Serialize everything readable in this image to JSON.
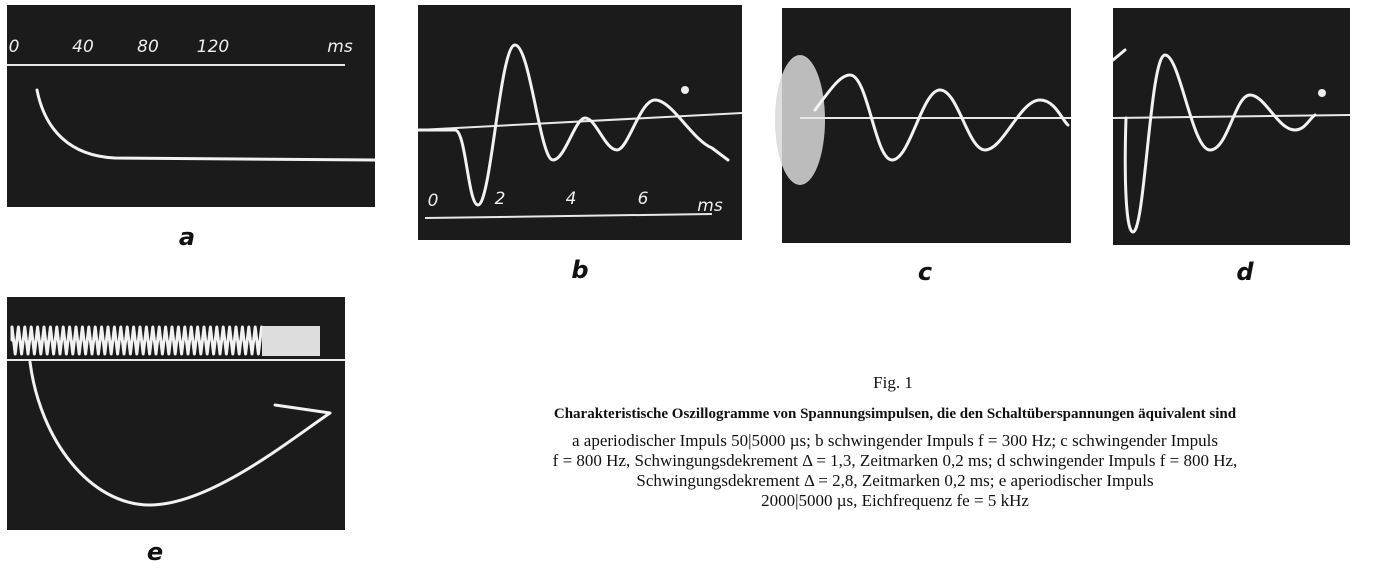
{
  "panels": [
    {
      "label": "a",
      "ticks": [
        "0",
        "40",
        "80",
        "120",
        "ms"
      ]
    },
    {
      "label": "b",
      "ticks": [
        "0",
        "2",
        "4",
        "6",
        "ms"
      ]
    },
    {
      "label": "c"
    },
    {
      "label": "d"
    },
    {
      "label": "e"
    }
  ],
  "caption": {
    "figure": "Fig. 1",
    "title": "Charakteristische Oszillogramme von Spannungsimpulsen, die den Schaltüberspannungen äquivalent sind",
    "lines": [
      "a aperiodischer Impuls 50|5000 µs; b schwingender Impuls f = 300 Hz; c schwingender Impuls",
      "f = 800 Hz, Schwingungsdekrement Δ = 1,3, Zeitmarken 0,2 ms; d schwingender Impuls f = 800 Hz,",
      "Schwingungsdekrement Δ = 2,8, Zeitmarken 0,2 ms; e aperiodischer Impuls",
      "2000|5000 µs, Eichfrequenz fe = 5 kHz"
    ]
  }
}
